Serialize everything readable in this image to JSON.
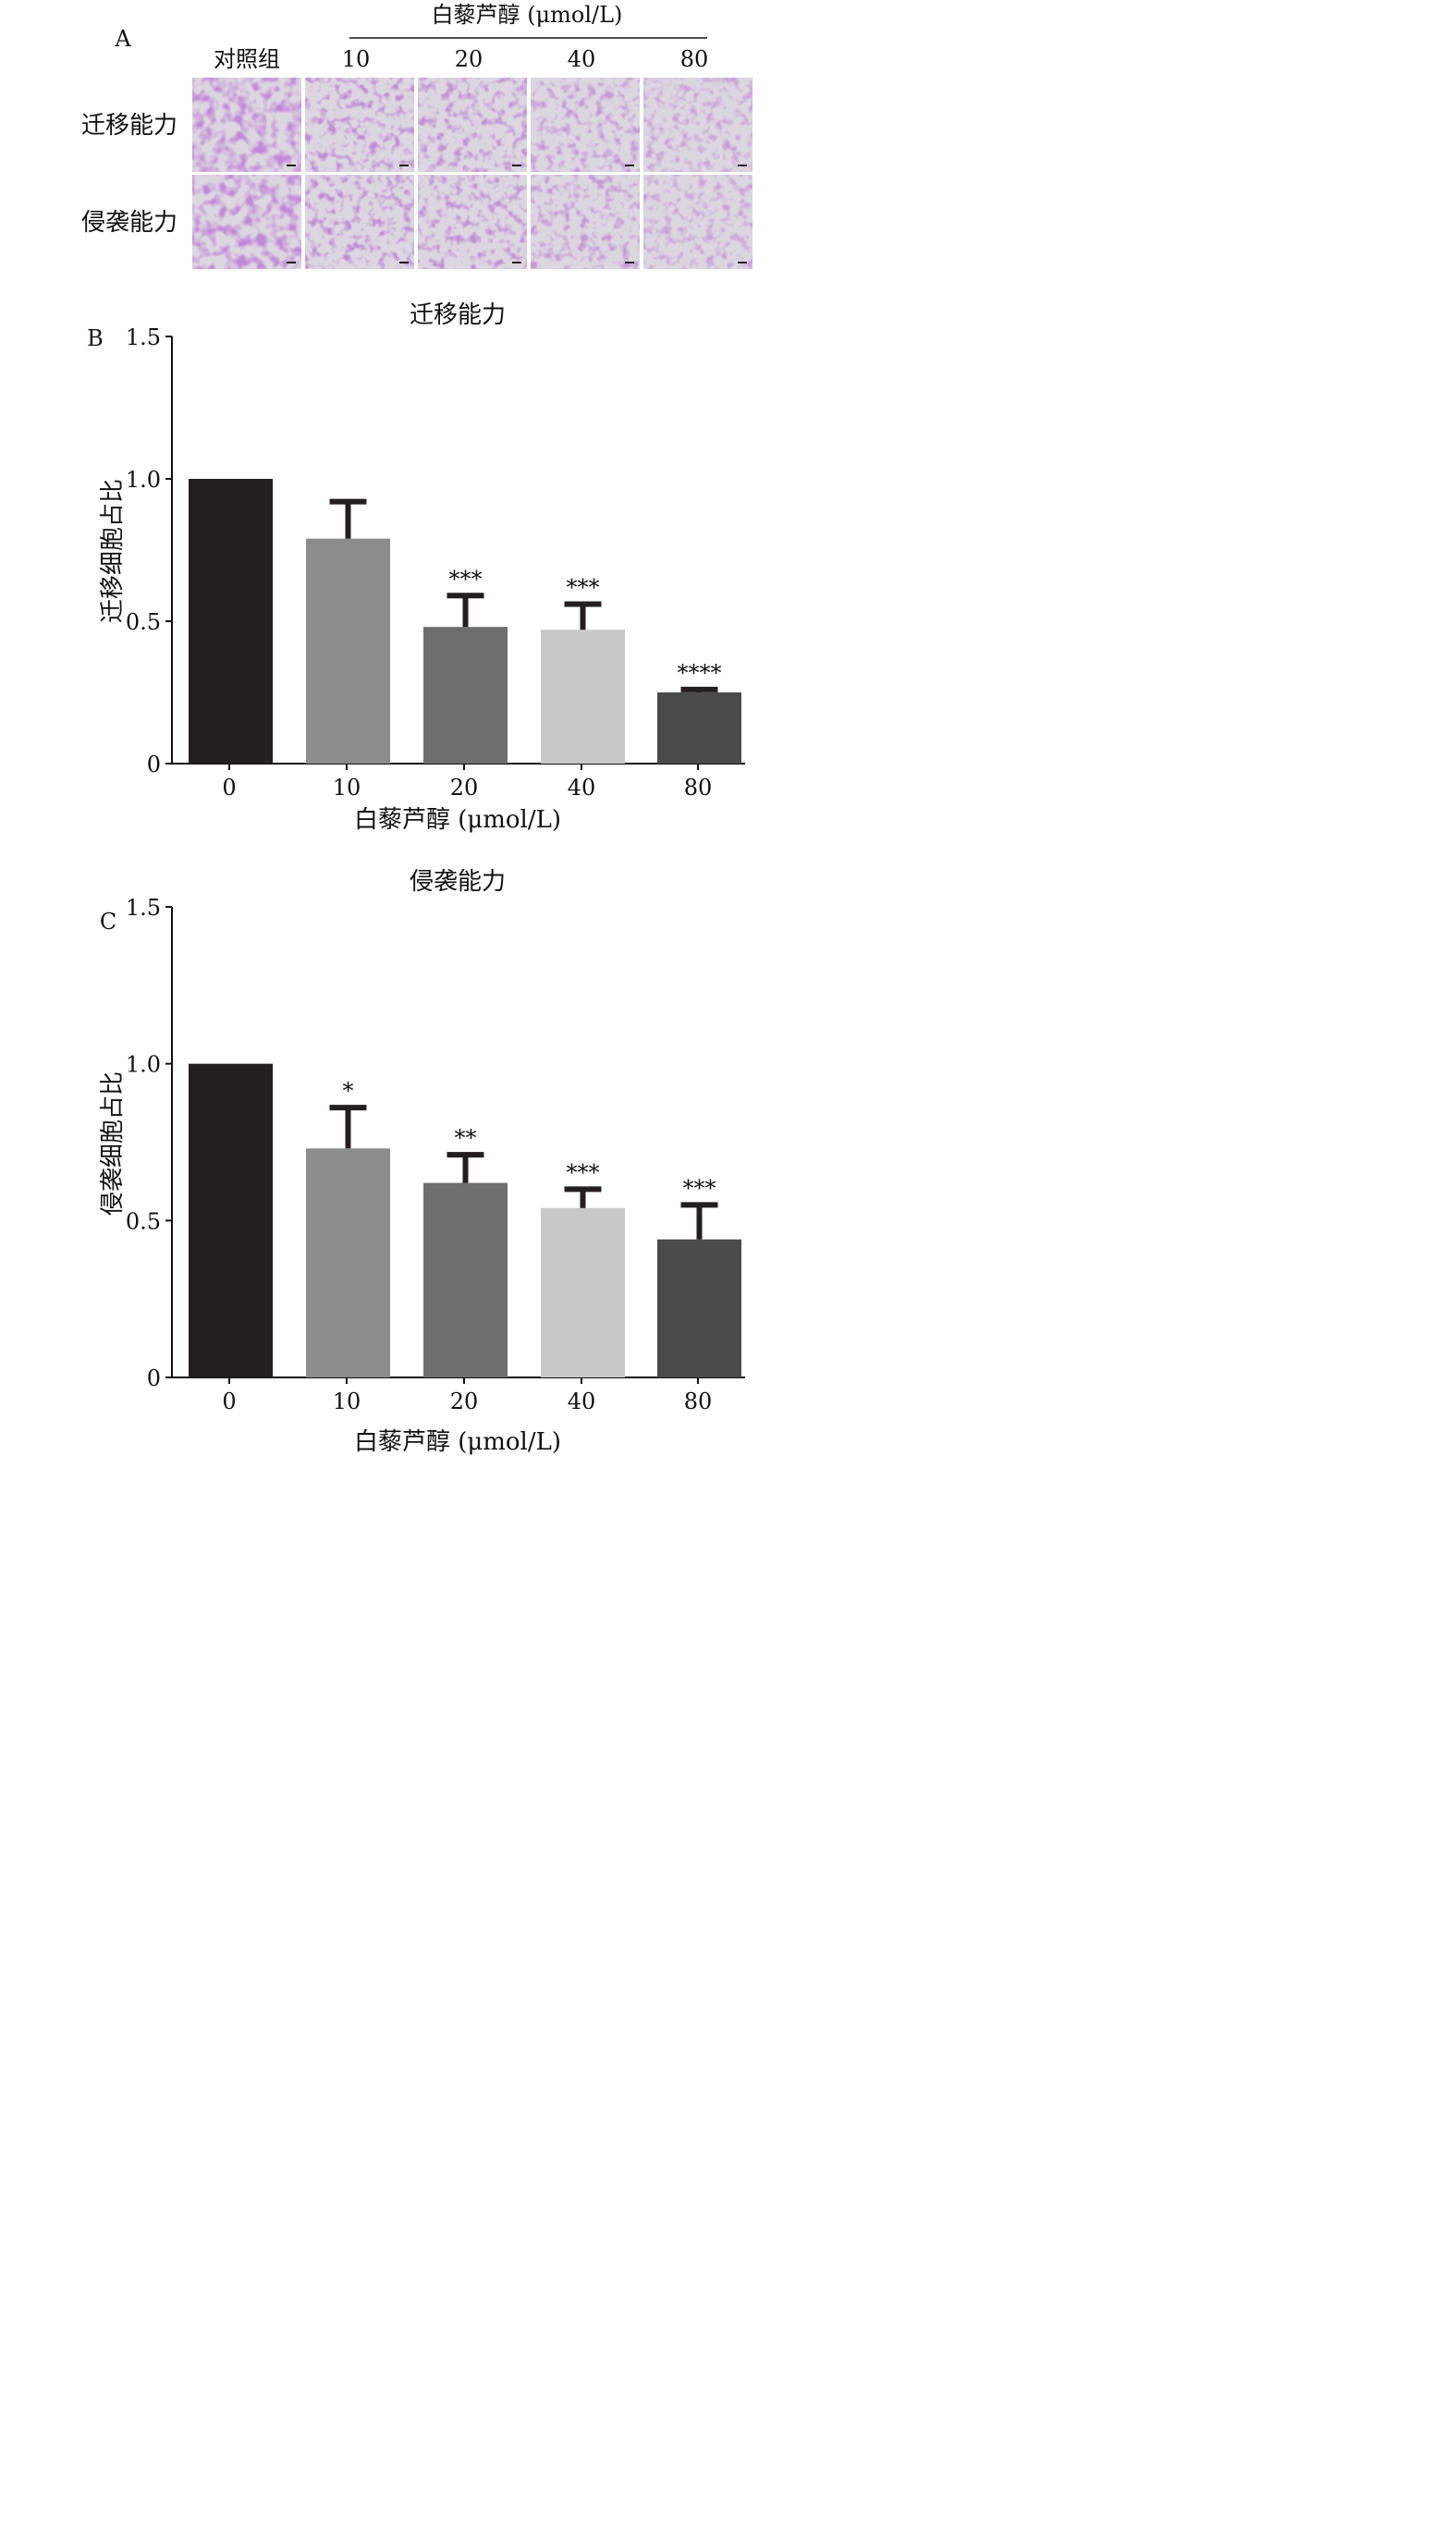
{
  "panel_a": {
    "label": "A",
    "treatment_header": "白藜芦醇 (μmol/L)",
    "columns": [
      "对照组",
      "10",
      "20",
      "40",
      "80"
    ],
    "rows": [
      "迁移能力",
      "侵袭能力"
    ],
    "stain_color": "#8a3fb0",
    "background_color": "#dcd6e0"
  },
  "chart_data": [
    {
      "type": "bar",
      "panel_label": "B",
      "title": "迁移能力",
      "xlabel": "白藜芦醇 (μmol/L)",
      "ylabel": "迁移细胞占比",
      "categories": [
        "0",
        "10",
        "20",
        "40",
        "80"
      ],
      "values": [
        1.0,
        0.79,
        0.48,
        0.47,
        0.25
      ],
      "errors": [
        0,
        0.13,
        0.11,
        0.09,
        0.01
      ],
      "significance": [
        "",
        "",
        "***",
        "***",
        "****"
      ],
      "ylim": [
        0,
        1.5
      ],
      "yticks": [
        "0",
        "0.5",
        "1.0",
        "1.5"
      ],
      "colors": [
        "#231f20",
        "#8c8c8c",
        "#6e6e6e",
        "#c8c8c8",
        "#4a4a4a"
      ],
      "grid": false,
      "legend": "none"
    },
    {
      "type": "bar",
      "panel_label": "C",
      "title": "侵袭能力",
      "xlabel": "白藜芦醇 (μmol/L)",
      "ylabel": "侵袭细胞占比",
      "categories": [
        "0",
        "10",
        "20",
        "40",
        "80"
      ],
      "values": [
        1.0,
        0.73,
        0.62,
        0.54,
        0.44
      ],
      "errors": [
        0,
        0.13,
        0.09,
        0.06,
        0.11
      ],
      "significance": [
        "",
        "*",
        "**",
        "***",
        "***"
      ],
      "ylim": [
        0,
        1.5
      ],
      "yticks": [
        "0",
        "0.5",
        "1.0",
        "1.5"
      ],
      "colors": [
        "#231f20",
        "#8c8c8c",
        "#6e6e6e",
        "#c8c8c8",
        "#4a4a4a"
      ],
      "grid": false,
      "legend": "none"
    }
  ]
}
